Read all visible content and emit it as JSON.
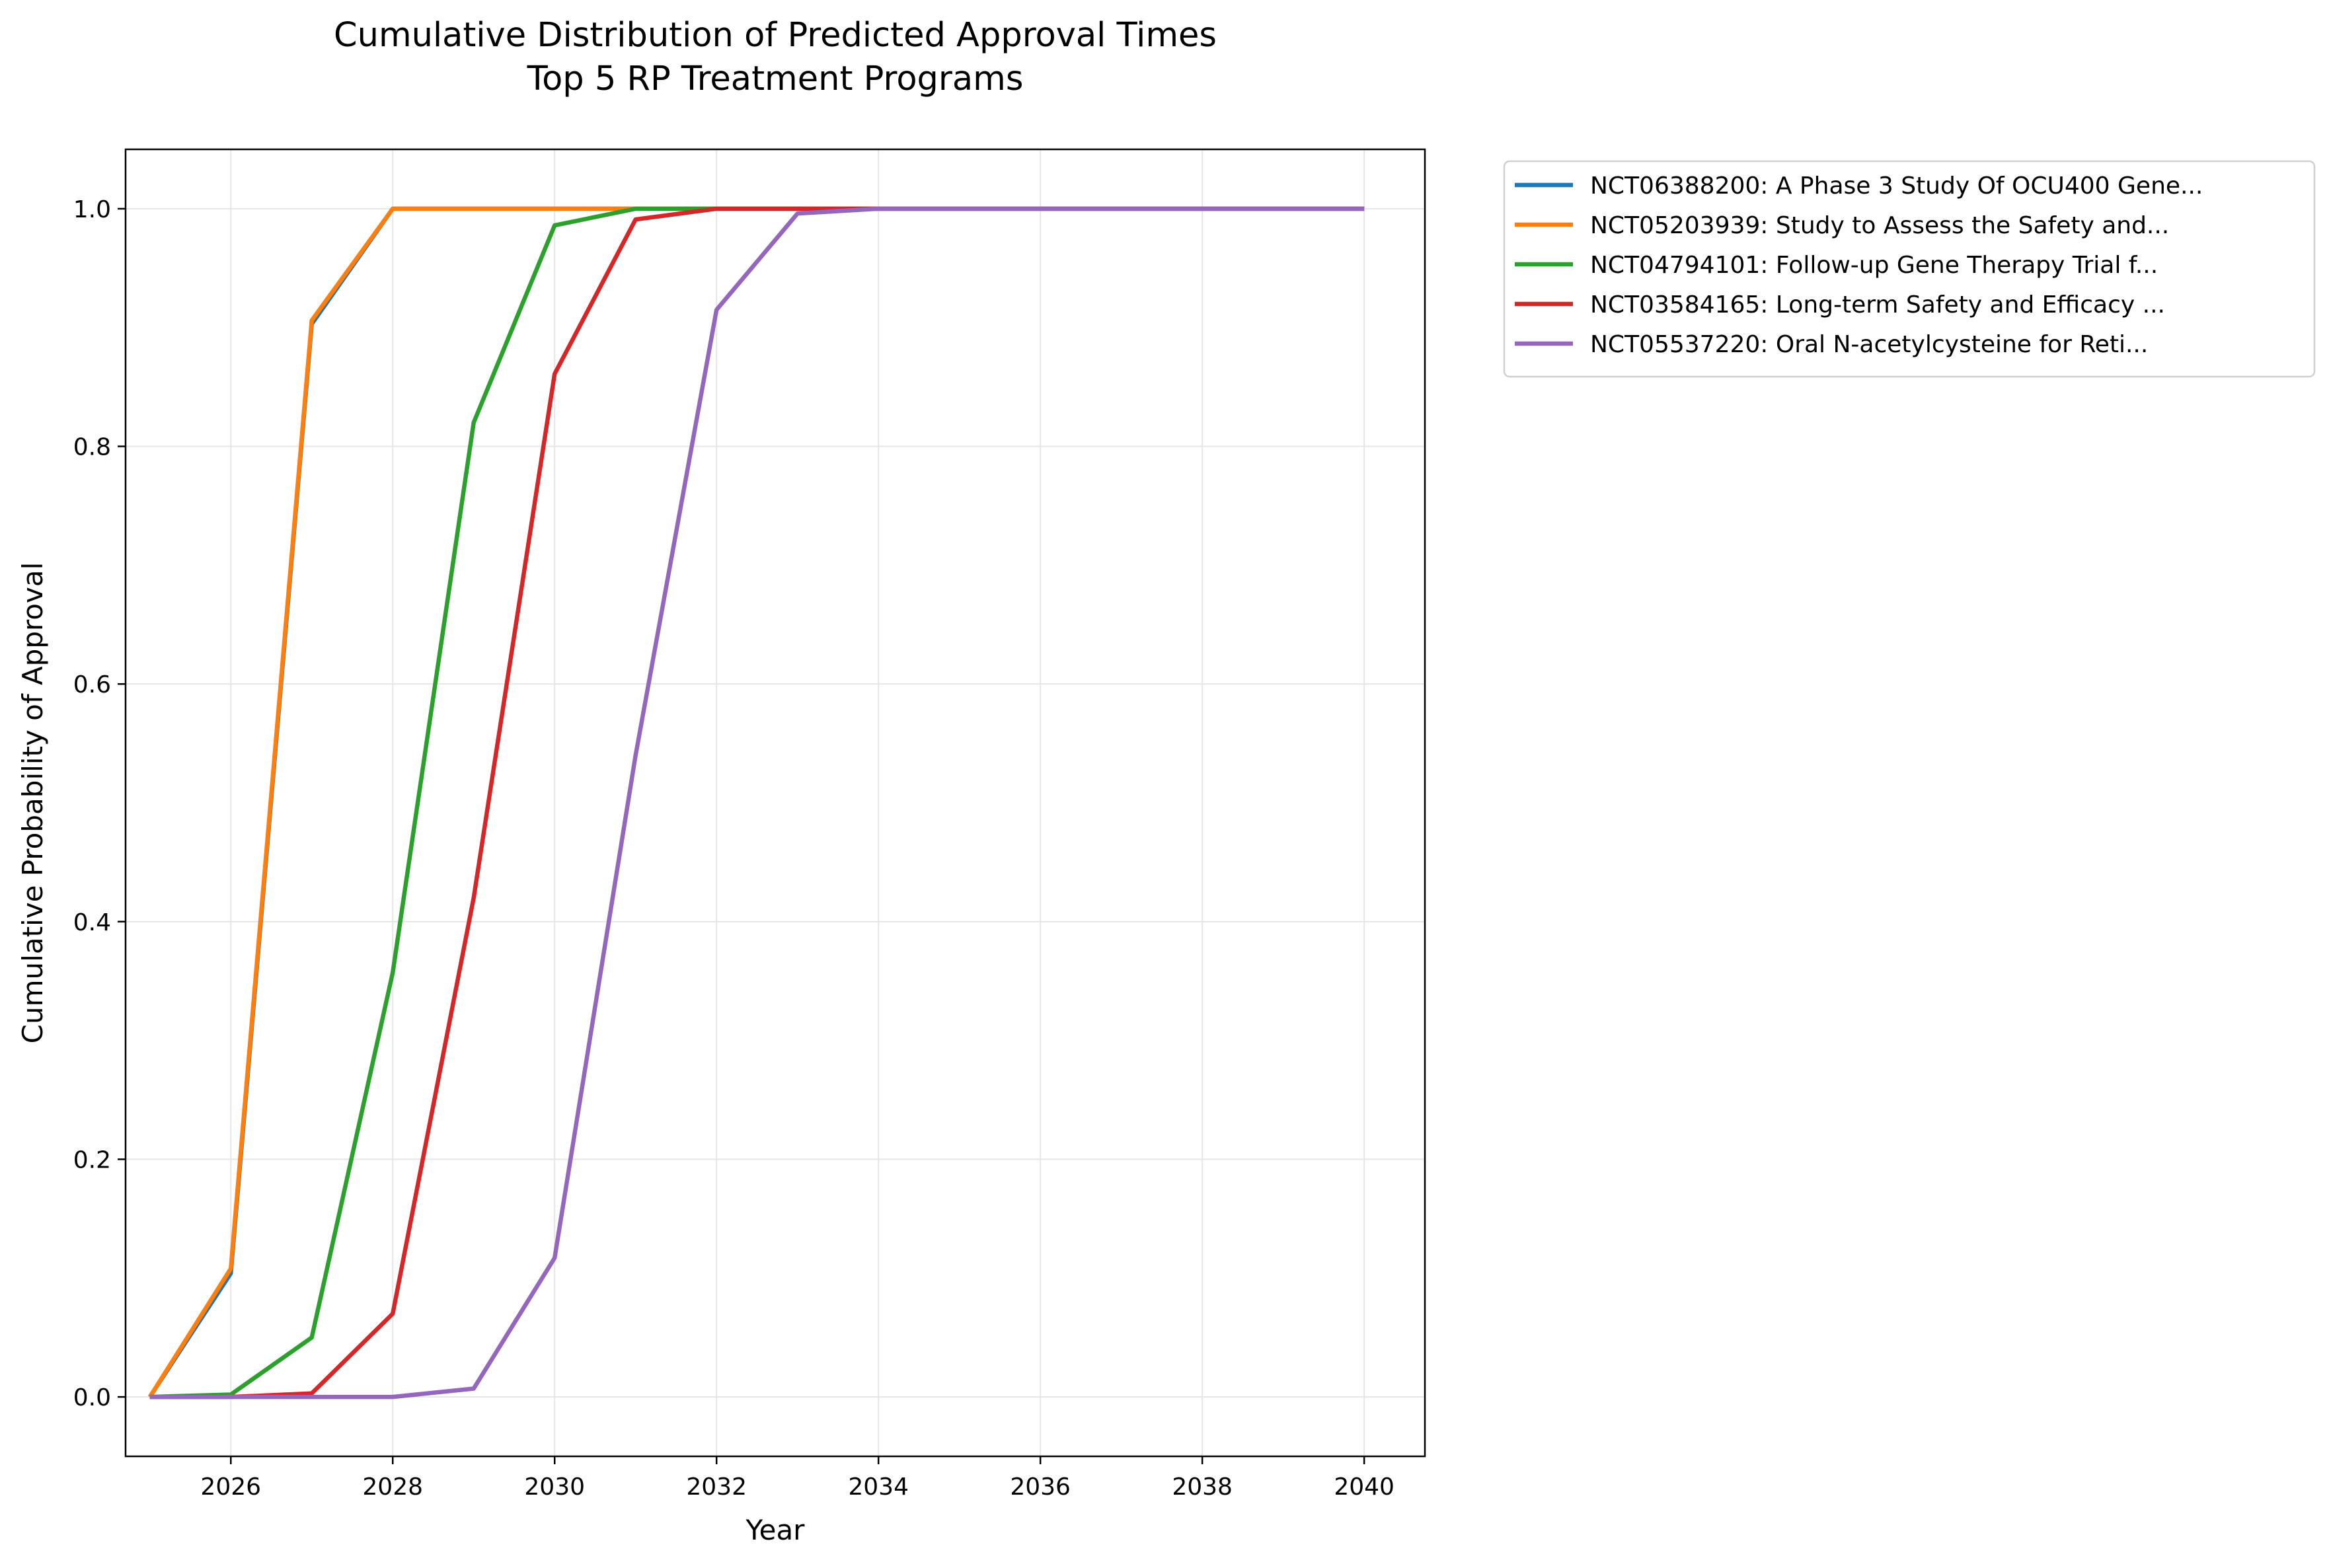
{
  "chart_data": {
    "type": "line",
    "title": [
      "Cumulative Distribution of Predicted Approval Times",
      "Top 5 RP Treatment Programs"
    ],
    "xlabel": "Year",
    "ylabel": "Cumulative Probability of Approval",
    "xlim": [
      2024.7,
      2040.75
    ],
    "ylim": [
      -0.05,
      1.05
    ],
    "xticks": [
      2026,
      2028,
      2030,
      2032,
      2034,
      2036,
      2038,
      2040
    ],
    "yticks": [
      0.0,
      0.2,
      0.4,
      0.6,
      0.8,
      1.0
    ],
    "ytick_labels": [
      "0.0",
      "0.2",
      "0.4",
      "0.6",
      "0.8",
      "1.0"
    ],
    "grid": true,
    "legend_position": "outside upper right",
    "x": [
      2025,
      2026,
      2027,
      2028,
      2029,
      2030,
      2031,
      2032,
      2033,
      2034,
      2035,
      2036,
      2037,
      2038,
      2039,
      2040
    ],
    "series": [
      {
        "name": "NCT06388200: A Phase 3 Study Of OCU400 Gene...",
        "color": "#1f77b4",
        "values": [
          0.0,
          0.104,
          0.903,
          1.0,
          1.0,
          1.0,
          1.0,
          1.0,
          1.0,
          1.0,
          1.0,
          1.0,
          1.0,
          1.0,
          1.0,
          1.0
        ]
      },
      {
        "name": "NCT05203939: Study to Assess the Safety and...",
        "color": "#ff7f0e",
        "values": [
          0.0,
          0.108,
          0.906,
          1.0,
          1.0,
          1.0,
          1.0,
          1.0,
          1.0,
          1.0,
          1.0,
          1.0,
          1.0,
          1.0,
          1.0,
          1.0
        ]
      },
      {
        "name": "NCT04794101: Follow-up Gene Therapy Trial f...",
        "color": "#2ca02c",
        "values": [
          0.0,
          0.002,
          0.05,
          0.357,
          0.82,
          0.986,
          1.0,
          1.0,
          1.0,
          1.0,
          1.0,
          1.0,
          1.0,
          1.0,
          1.0,
          1.0
        ]
      },
      {
        "name": "NCT03584165: Long-term Safety and Efficacy ...",
        "color": "#d62728",
        "values": [
          0.0,
          0.0,
          0.003,
          0.07,
          0.42,
          0.861,
          0.991,
          1.0,
          1.0,
          1.0,
          1.0,
          1.0,
          1.0,
          1.0,
          1.0,
          1.0
        ]
      },
      {
        "name": "NCT05537220: Oral N-acetylcysteine for Reti...",
        "color": "#9467bd",
        "values": [
          0.0,
          0.0,
          0.0,
          0.0,
          0.007,
          0.117,
          0.54,
          0.915,
          0.996,
          1.0,
          1.0,
          1.0,
          1.0,
          1.0,
          1.0,
          1.0
        ]
      }
    ]
  }
}
